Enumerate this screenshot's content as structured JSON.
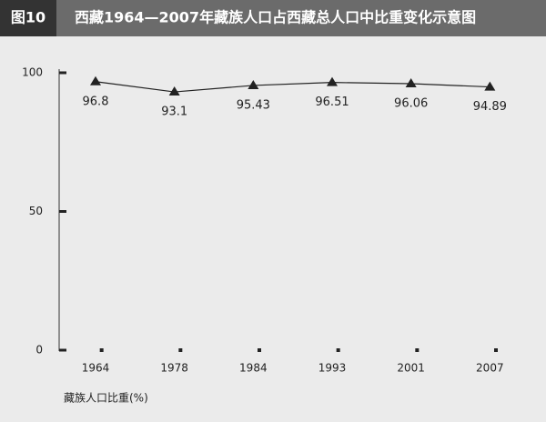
{
  "figure_label": "图10",
  "chart_data": {
    "type": "line",
    "title": "西藏1964—2007年藏族人口占西藏总人口中比重变化示意图",
    "categories": [
      "1964",
      "1978",
      "1984",
      "1993",
      "2001",
      "2007"
    ],
    "values": [
      96.8,
      93.1,
      95.43,
      96.51,
      96.06,
      94.89
    ],
    "color": "#222222",
    "ylim": [
      0,
      100
    ],
    "yticks": [
      0,
      50,
      100
    ],
    "grid": false,
    "y_label": "藏族人口比重(%)"
  }
}
